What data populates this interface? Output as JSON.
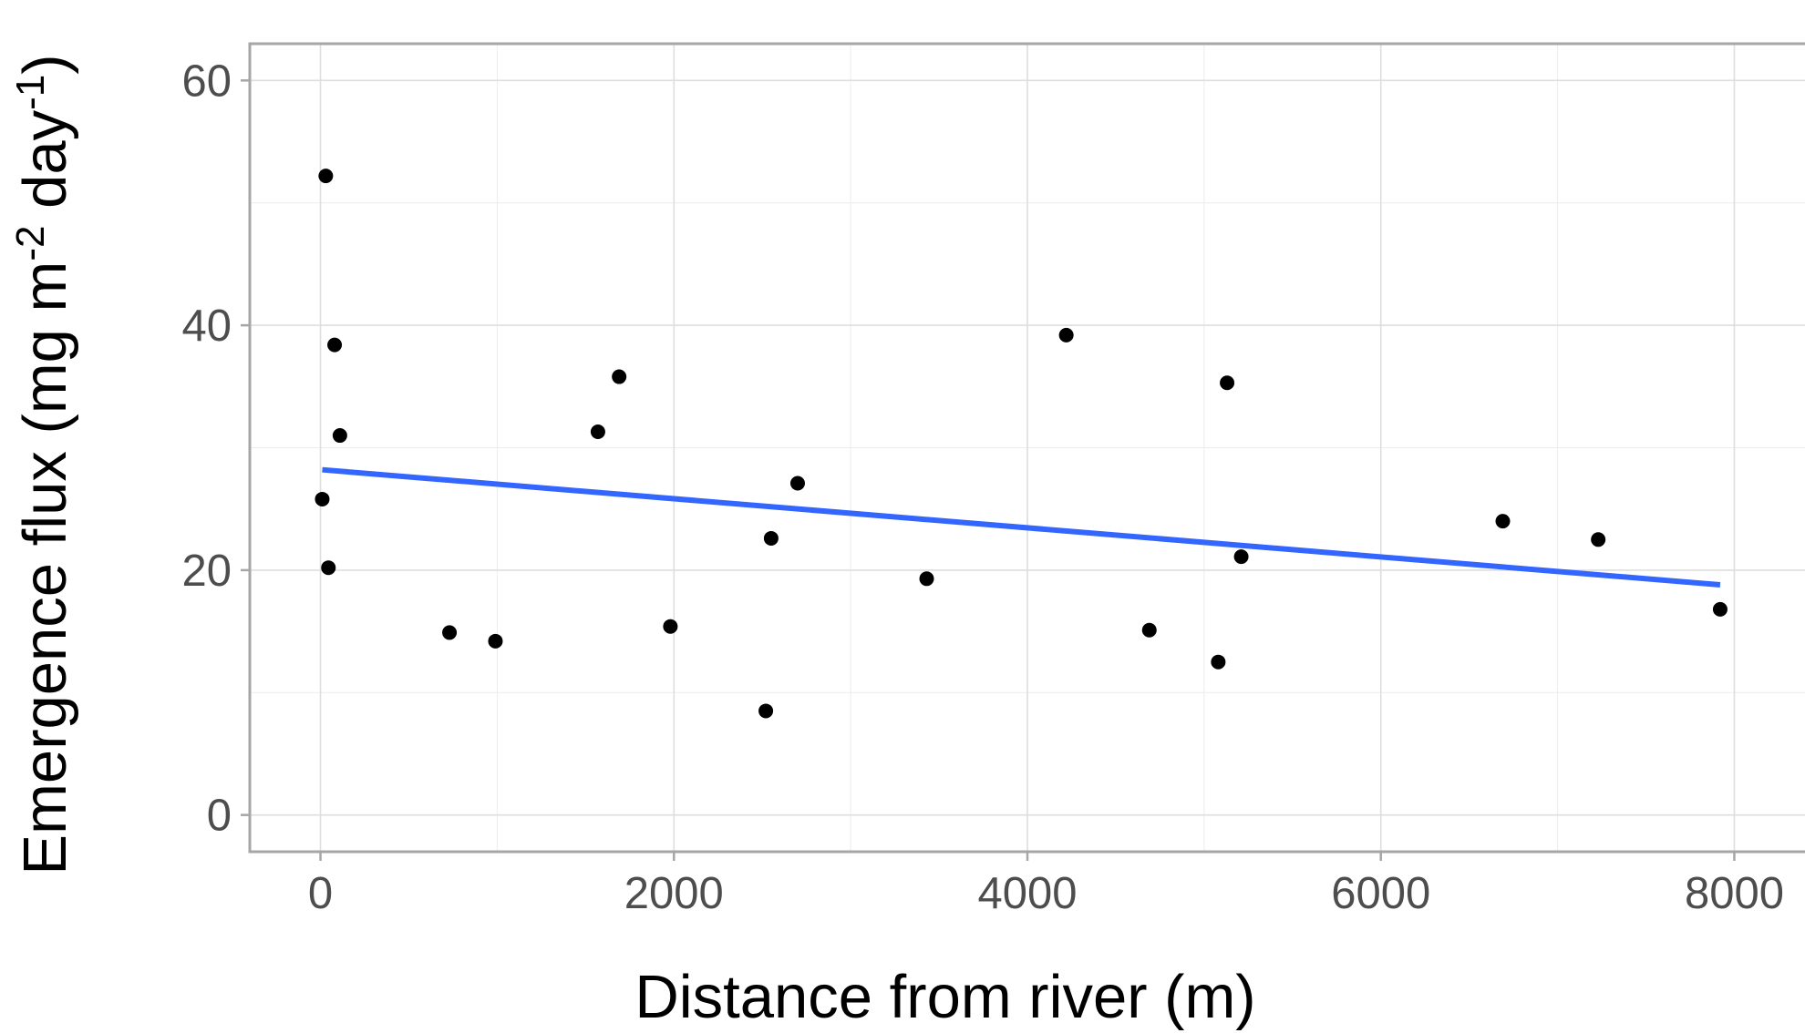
{
  "chart_data": {
    "type": "scatter",
    "xlabel": "Distance from river (m)",
    "ylabel": {
      "parts": [
        "Emergence flux (mg m",
        "-2",
        " day",
        "-1",
        ")"
      ]
    },
    "xlim": [
      -400,
      8400
    ],
    "ylim": [
      -3,
      63
    ],
    "xticks": [
      0,
      2000,
      4000,
      6000,
      8000
    ],
    "xtick_labels": [
      "0",
      "2000",
      "4000",
      "6000",
      "8000"
    ],
    "yticks": [
      0,
      20,
      40,
      60
    ],
    "ytick_labels": [
      "0",
      "20",
      "40",
      "60"
    ],
    "x_minor_ticks": [
      1000,
      3000,
      5000,
      7000
    ],
    "y_minor_ticks": [
      10,
      30,
      50
    ],
    "grid": true,
    "points": [
      {
        "x": 30,
        "y": 52.2
      },
      {
        "x": 80,
        "y": 38.4
      },
      {
        "x": 110,
        "y": 31.0
      },
      {
        "x": 10,
        "y": 25.8
      },
      {
        "x": 45,
        "y": 20.2
      },
      {
        "x": 730,
        "y": 14.9
      },
      {
        "x": 990,
        "y": 14.2
      },
      {
        "x": 1570,
        "y": 31.3
      },
      {
        "x": 1690,
        "y": 35.8
      },
      {
        "x": 1980,
        "y": 15.4
      },
      {
        "x": 2520,
        "y": 8.5
      },
      {
        "x": 2550,
        "y": 22.6
      },
      {
        "x": 2700,
        "y": 27.1
      },
      {
        "x": 3430,
        "y": 19.3
      },
      {
        "x": 4220,
        "y": 39.2
      },
      {
        "x": 4690,
        "y": 15.1
      },
      {
        "x": 5080,
        "y": 12.5
      },
      {
        "x": 5130,
        "y": 35.3
      },
      {
        "x": 5210,
        "y": 21.1
      },
      {
        "x": 6690,
        "y": 24.0
      },
      {
        "x": 7230,
        "y": 22.5
      },
      {
        "x": 7920,
        "y": 16.8
      }
    ],
    "trend_line": {
      "x": [
        10,
        7920
      ],
      "y": [
        28.2,
        18.8
      ],
      "color": "#3366FF"
    },
    "point_color": "#000000"
  }
}
